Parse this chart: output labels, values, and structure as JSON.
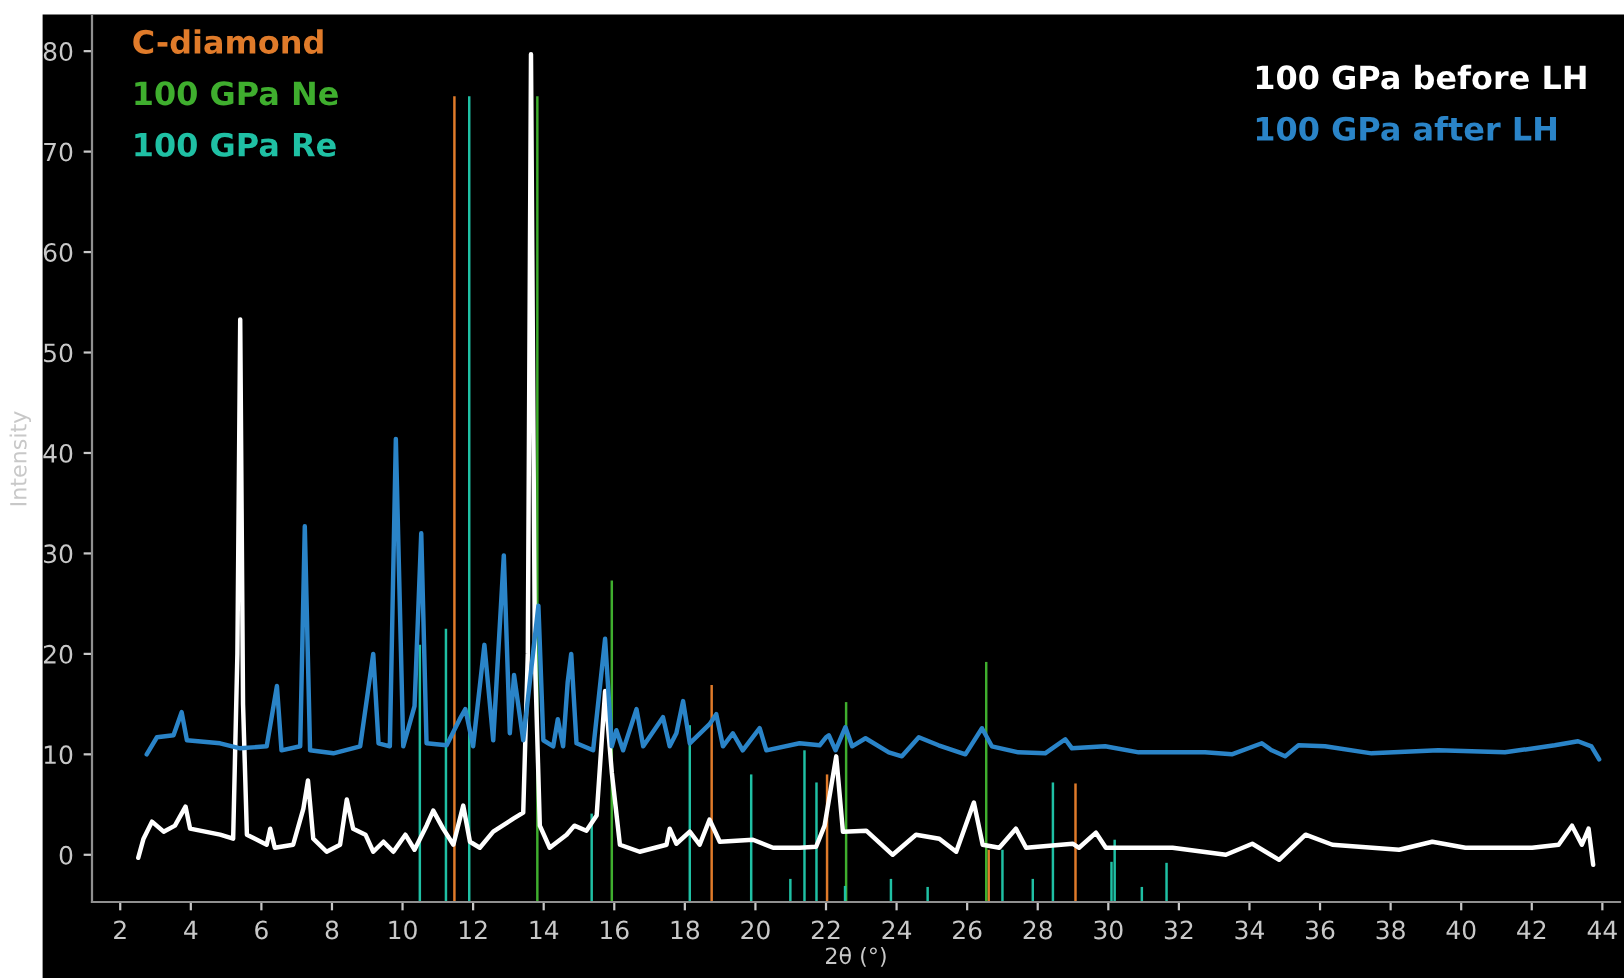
{
  "chart_data": {
    "type": "line",
    "xlabel": "2θ (°)",
    "ylabel": "Intensity",
    "xlim": [
      1.2,
      44.5
    ],
    "ylim": [
      -4.7,
      83.5
    ],
    "xticks": [
      2,
      4,
      6,
      8,
      10,
      12,
      14,
      16,
      18,
      20,
      22,
      24,
      26,
      28,
      30,
      32,
      34,
      36,
      38,
      40,
      42,
      44
    ],
    "yticks": [
      0,
      10,
      20,
      30,
      40,
      50,
      60,
      70,
      80
    ],
    "grid": false,
    "legend": "top",
    "marker": "none",
    "line_style": "solid",
    "series": [
      {
        "name": "C-diamond",
        "type": "bar",
        "color": "#e07b2a",
        "x": [
          11.47,
          18.76,
          22.03,
          26.61,
          29.07
        ],
        "base": [
          -4.7,
          -4.7,
          -4.7,
          -4.7,
          -4.7
        ],
        "values": [
          80.2,
          21.6,
          12.7,
          5.2,
          11.8
        ]
      },
      {
        "name": "100 GPa Ne",
        "type": "bar",
        "color": "#3fae2e",
        "x": [
          13.82,
          15.93,
          22.57,
          26.54
        ],
        "base": [
          -4.7,
          -4.7,
          -4.7,
          -4.7
        ],
        "values": [
          80.2,
          32.0,
          19.9,
          23.9
        ]
      },
      {
        "name": "100 GPa Re",
        "type": "bar",
        "color": "#1fc0a4",
        "x": [
          10.49,
          11.23,
          11.89,
          15.36,
          18.14,
          19.88,
          20.99,
          21.39,
          21.73,
          22.54,
          23.84,
          24.88,
          27.0,
          27.86,
          28.43,
          30.09,
          30.18,
          30.95,
          31.65
        ],
        "base": [
          -4.7,
          -4.7,
          -4.7,
          -4.7,
          -4.7,
          -4.7,
          -4.7,
          -4.7,
          -4.7,
          -4.7,
          -4.7,
          -4.7,
          -4.7,
          -4.7,
          -4.7,
          -4.7,
          -4.7,
          -4.7,
          -4.7
        ],
        "values": [
          25.6,
          27.2,
          80.2,
          8.8,
          17.6,
          12.7,
          2.3,
          15.1,
          11.9,
          1.6,
          2.3,
          1.5,
          5.2,
          2.3,
          11.9,
          4.0,
          6.2,
          1.5,
          3.9
        ]
      },
      {
        "name": "100 GPa before LH",
        "color": "#ffffff",
        "x": [
          2.51,
          2.66,
          2.9,
          3.23,
          3.55,
          3.85,
          3.98,
          4.83,
          5.2,
          5.32,
          5.4,
          5.48,
          5.59,
          6.15,
          6.25,
          6.38,
          6.9,
          7.19,
          7.32,
          7.47,
          7.85,
          8.23,
          8.42,
          8.6,
          8.95,
          9.17,
          9.46,
          9.74,
          10.08,
          10.34,
          10.68,
          10.87,
          11.15,
          11.44,
          11.72,
          11.91,
          12.19,
          12.57,
          13.14,
          13.42,
          13.55,
          13.64,
          13.75,
          13.89,
          14.17,
          14.65,
          14.87,
          15.21,
          15.5,
          15.74,
          15.93,
          16.16,
          16.72,
          17.48,
          17.57,
          17.76,
          18.14,
          18.42,
          18.7,
          18.99,
          19.93,
          20.5,
          21.25,
          21.72,
          21.96,
          22.29,
          22.48,
          23.14,
          23.89,
          24.55,
          25.21,
          25.69,
          26.19,
          26.44,
          26.91,
          27.38,
          27.67,
          28.99,
          29.17,
          29.65,
          29.93,
          31.82,
          33.33,
          34.08,
          34.84,
          35.59,
          36.35,
          38.24,
          39.18,
          40.12,
          42.01,
          42.76,
          43.14,
          43.42,
          43.61,
          43.74
        ],
        "values": [
          -0.3,
          1.6,
          3.3,
          2.3,
          2.9,
          4.8,
          2.6,
          2.0,
          1.6,
          20.0,
          53.3,
          15.0,
          2.0,
          1.0,
          2.6,
          0.7,
          1.0,
          4.6,
          7.4,
          1.6,
          0.3,
          1.0,
          5.5,
          2.6,
          2.0,
          0.3,
          1.3,
          0.3,
          2.0,
          0.5,
          2.9,
          4.4,
          2.6,
          1.0,
          4.9,
          1.3,
          0.7,
          2.3,
          3.6,
          4.2,
          20.0,
          79.7,
          20.0,
          2.9,
          0.7,
          2.0,
          2.9,
          2.4,
          3.9,
          16.3,
          8.2,
          1.0,
          0.3,
          1.0,
          2.6,
          1.1,
          2.3,
          1.0,
          3.5,
          1.3,
          1.5,
          0.7,
          0.7,
          0.8,
          2.9,
          9.8,
          2.3,
          2.4,
          0.0,
          2.0,
          1.6,
          0.3,
          5.2,
          1.0,
          0.7,
          2.6,
          0.7,
          1.1,
          0.7,
          2.2,
          0.7,
          0.7,
          0.0,
          1.1,
          -0.5,
          2.0,
          1.0,
          0.5,
          1.3,
          0.7,
          0.7,
          1.0,
          2.9,
          1.0,
          2.6,
          -1.0
        ]
      },
      {
        "name": "100 GPa after LH",
        "color": "#2a84c8",
        "x": [
          2.75,
          3.04,
          3.51,
          3.74,
          3.89,
          4.83,
          5.4,
          6.15,
          6.44,
          6.57,
          7.1,
          7.23,
          7.38,
          8.04,
          8.8,
          9.17,
          9.32,
          9.64,
          9.81,
          10.02,
          10.34,
          10.53,
          10.68,
          11.25,
          11.62,
          11.78,
          12.0,
          12.32,
          12.57,
          12.87,
          13.04,
          13.16,
          13.42,
          13.85,
          13.99,
          14.27,
          14.4,
          14.55,
          14.68,
          14.78,
          14.93,
          15.4,
          15.74,
          15.93,
          16.06,
          16.25,
          16.63,
          16.82,
          17.38,
          17.57,
          17.76,
          17.95,
          18.14,
          18.7,
          18.89,
          19.08,
          19.36,
          19.64,
          20.12,
          20.31,
          21.25,
          21.82,
          22.0,
          22.08,
          22.27,
          22.55,
          22.74,
          23.12,
          23.78,
          24.15,
          24.63,
          25.19,
          25.95,
          26.42,
          26.7,
          27.45,
          28.21,
          28.78,
          28.97,
          29.91,
          30.86,
          32.74,
          33.5,
          34.35,
          34.63,
          35.01,
          35.39,
          36.14,
          37.46,
          39.35,
          41.24,
          42.65,
          43.31,
          43.69,
          43.91
        ],
        "values": [
          10.0,
          11.7,
          11.9,
          14.2,
          11.4,
          11.1,
          10.6,
          10.8,
          16.8,
          10.4,
          10.8,
          32.7,
          10.4,
          10.1,
          10.8,
          20.0,
          11.1,
          10.8,
          41.4,
          10.8,
          14.8,
          32.0,
          11.1,
          10.9,
          13.5,
          14.5,
          10.8,
          20.9,
          11.4,
          29.8,
          12.1,
          17.9,
          11.4,
          24.8,
          11.4,
          10.8,
          13.5,
          10.8,
          17.2,
          20.0,
          11.1,
          10.4,
          21.5,
          10.8,
          12.4,
          10.4,
          14.5,
          10.8,
          13.7,
          10.8,
          12.1,
          15.3,
          11.1,
          13.0,
          14.0,
          10.8,
          12.1,
          10.4,
          12.6,
          10.4,
          11.1,
          10.9,
          11.7,
          11.9,
          10.4,
          12.7,
          10.8,
          11.6,
          10.2,
          9.8,
          11.7,
          10.9,
          10.0,
          12.6,
          10.8,
          10.2,
          10.1,
          11.5,
          10.6,
          10.8,
          10.2,
          10.2,
          10.0,
          11.1,
          10.4,
          9.8,
          10.9,
          10.8,
          10.1,
          10.4,
          10.2,
          10.9,
          11.3,
          10.8,
          9.5
        ]
      }
    ]
  }
}
